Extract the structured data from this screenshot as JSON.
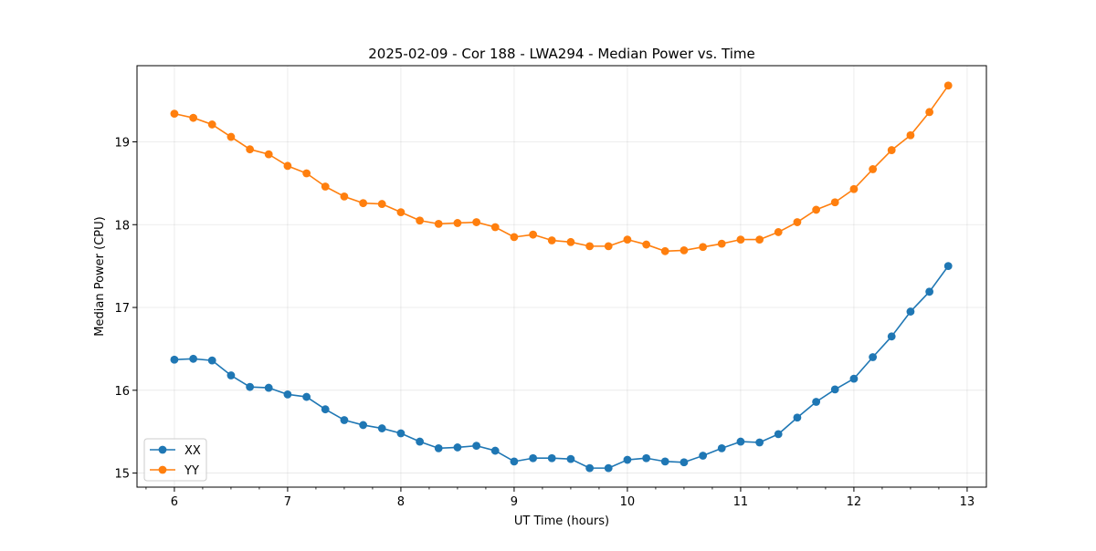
{
  "chart_data": {
    "type": "line",
    "title": "2025-02-09 - Cor 188 - LWA294 - Median Power vs. Time",
    "xlabel": "UT Time (hours)",
    "ylabel": "Median Power (CPU)",
    "xlim": [
      5.67,
      13.17
    ],
    "ylim": [
      14.83,
      19.92
    ],
    "xticks": [
      6,
      7,
      8,
      9,
      10,
      11,
      12,
      13
    ],
    "yticks": [
      15,
      16,
      17,
      18,
      19
    ],
    "grid": true,
    "legend_position": "lower-left",
    "x": [
      6.0,
      6.167,
      6.333,
      6.5,
      6.667,
      6.833,
      7.0,
      7.167,
      7.333,
      7.5,
      7.667,
      7.833,
      8.0,
      8.167,
      8.333,
      8.5,
      8.667,
      8.833,
      9.0,
      9.167,
      9.333,
      9.5,
      9.667,
      9.833,
      10.0,
      10.167,
      10.333,
      10.5,
      10.667,
      10.833,
      11.0,
      11.167,
      11.333,
      11.5,
      11.667,
      11.833,
      12.0,
      12.167,
      12.333,
      12.5,
      12.667,
      12.833
    ],
    "series": [
      {
        "name": "XX",
        "color": "#1f77b4",
        "values": [
          16.37,
          16.38,
          16.36,
          16.18,
          16.04,
          16.03,
          15.95,
          15.92,
          15.77,
          15.64,
          15.58,
          15.54,
          15.48,
          15.38,
          15.3,
          15.31,
          15.33,
          15.27,
          15.14,
          15.18,
          15.18,
          15.17,
          15.06,
          15.06,
          15.16,
          15.18,
          15.14,
          15.13,
          15.21,
          15.3,
          15.38,
          15.37,
          15.47,
          15.67,
          15.86,
          16.01,
          16.14,
          16.4,
          16.65,
          16.95,
          17.19,
          17.5
        ]
      },
      {
        "name": "YY",
        "color": "#ff7f0e",
        "values": [
          19.34,
          19.29,
          19.21,
          19.06,
          18.91,
          18.85,
          18.71,
          18.62,
          18.46,
          18.34,
          18.26,
          18.25,
          18.15,
          18.05,
          18.01,
          18.02,
          18.03,
          17.97,
          17.85,
          17.88,
          17.81,
          17.79,
          17.74,
          17.74,
          17.82,
          17.76,
          17.68,
          17.69,
          17.73,
          17.77,
          17.82,
          17.82,
          17.91,
          18.03,
          18.18,
          18.27,
          18.43,
          18.67,
          18.9,
          19.08,
          19.36,
          19.68
        ]
      }
    ]
  }
}
